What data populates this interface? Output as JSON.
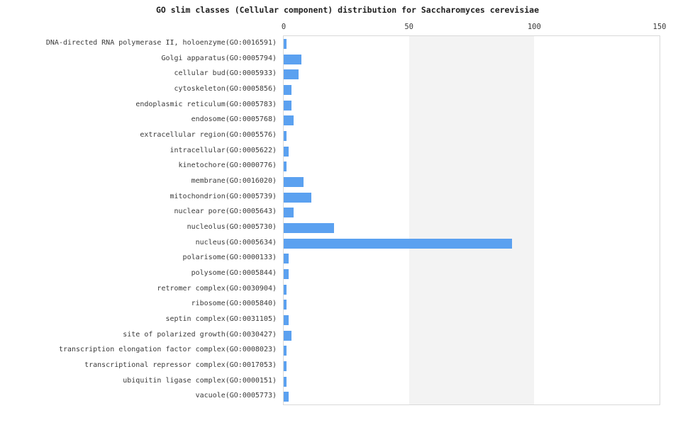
{
  "chart_data": {
    "type": "bar",
    "orientation": "horizontal",
    "title": "GO slim classes (Cellular component) distribution for Saccharomyces cerevisiae",
    "xlabel": "",
    "ylabel": "",
    "xlim": [
      0,
      150
    ],
    "x_ticks": [
      0,
      50,
      100,
      150
    ],
    "x_ticks_position": "top",
    "grid": "alternating-vertical-bands",
    "legend": "none",
    "categories": [
      "DNA-directed RNA polymerase II, holoenzyme(GO:0016591)",
      "Golgi apparatus(GO:0005794)",
      "cellular bud(GO:0005933)",
      "cytoskeleton(GO:0005856)",
      "endoplasmic reticulum(GO:0005783)",
      "endosome(GO:0005768)",
      "extracellular region(GO:0005576)",
      "intracellular(GO:0005622)",
      "kinetochore(GO:0000776)",
      "membrane(GO:0016020)",
      "mitochondrion(GO:0005739)",
      "nuclear pore(GO:0005643)",
      "nucleolus(GO:0005730)",
      "nucleus(GO:0005634)",
      "polarisome(GO:0000133)",
      "polysome(GO:0005844)",
      "retromer complex(GO:0030904)",
      "ribosome(GO:0005840)",
      "septin complex(GO:0031105)",
      "site of polarized growth(GO:0030427)",
      "transcription elongation factor complex(GO:0008023)",
      "transcriptional repressor complex(GO:0017053)",
      "ubiquitin ligase complex(GO:0000151)",
      "vacuole(GO:0005773)"
    ],
    "values": [
      1,
      7,
      6,
      3,
      3,
      4,
      1,
      2,
      1,
      8,
      11,
      4,
      20,
      91,
      2,
      2,
      1,
      1,
      2,
      3,
      1,
      1,
      1,
      2
    ],
    "colors": {
      "bar": "#5ba1f0",
      "band": "#f3f3f3",
      "plot_border": "#d9d9d9",
      "tick_text": "#3a3a3a",
      "label_text": "#3a3a3a",
      "title_text": "#1f1f1f",
      "background": "#ffffff"
    }
  }
}
